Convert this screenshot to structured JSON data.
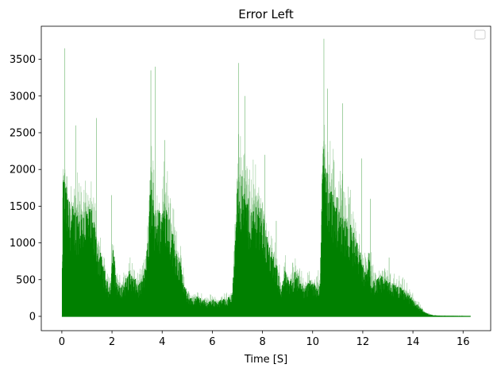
{
  "chart_data": {
    "type": "area",
    "title": "Error Left",
    "xlabel": "Time [S]",
    "ylabel": "",
    "xlim": [
      -0.82,
      17.1
    ],
    "ylim": [
      -195,
      3950
    ],
    "xticks": [
      0,
      2,
      4,
      6,
      8,
      10,
      12,
      14,
      16
    ],
    "yticks": [
      0,
      500,
      1000,
      1500,
      2000,
      2500,
      3000,
      3500
    ],
    "grid": false,
    "legend": {
      "location": "top-right",
      "entries": []
    },
    "series": [
      {
        "color": "#008000",
        "style": "dense vertical lines (signal envelope)",
        "envelope": {
          "x": [
            0.0,
            0.05,
            0.1,
            0.2,
            0.3,
            0.45,
            0.6,
            0.8,
            1.0,
            1.2,
            1.35,
            1.45,
            1.6,
            1.75,
            1.85,
            1.95,
            2.05,
            2.15,
            2.3,
            2.5,
            2.7,
            2.9,
            3.1,
            3.3,
            3.45,
            3.55,
            3.65,
            3.8,
            3.95,
            4.1,
            4.3,
            4.5,
            4.7,
            4.85,
            5.0,
            5.2,
            5.4,
            5.6,
            5.8,
            6.0,
            6.2,
            6.4,
            6.6,
            6.8,
            6.9,
            7.0,
            7.1,
            7.25,
            7.45,
            7.6,
            7.8,
            8.0,
            8.15,
            8.3,
            8.45,
            8.6,
            8.75,
            8.9,
            9.05,
            9.2,
            9.35,
            9.5,
            9.7,
            9.9,
            10.1,
            10.3,
            10.4,
            10.45,
            10.55,
            10.7,
            10.9,
            11.1,
            11.3,
            11.5,
            11.7,
            11.85,
            12.0,
            12.15,
            12.25,
            12.35,
            12.5,
            12.7,
            12.9,
            13.1,
            13.3,
            13.5,
            13.7,
            13.9,
            14.1,
            14.3,
            14.5,
            14.8,
            15.2,
            15.6,
            16.0,
            16.3
          ],
          "y": [
            0,
            2600,
            2400,
            2200,
            2000,
            1900,
            1850,
            1900,
            1950,
            1800,
            1500,
            1200,
            1000,
            700,
            550,
            650,
            1300,
            700,
            500,
            600,
            800,
            650,
            550,
            800,
            1400,
            2600,
            2000,
            1900,
            1800,
            2200,
            1700,
            1300,
            1000,
            600,
            400,
            300,
            350,
            300,
            250,
            300,
            260,
            300,
            320,
            400,
            1200,
            2600,
            2500,
            2300,
            2000,
            1900,
            2100,
            1800,
            1500,
            1200,
            1000,
            850,
            500,
            800,
            600,
            700,
            850,
            600,
            500,
            650,
            550,
            600,
            2700,
            3100,
            2600,
            2300,
            2100,
            1900,
            1800,
            1600,
            1400,
            1200,
            900,
            800,
            1100,
            700,
            600,
            700,
            650,
            600,
            550,
            500,
            450,
            350,
            250,
            150,
            60,
            20,
            12,
            10,
            8,
            5
          ]
        },
        "peaks": {
          "x": [
            0.12,
            0.55,
            1.38,
            1.98,
            3.55,
            3.72,
            4.1,
            7.05,
            7.3,
            8.1,
            8.55,
            10.45,
            10.6,
            11.2,
            11.95,
            12.3,
            13.05
          ],
          "y": [
            3650,
            2600,
            2700,
            1650,
            3350,
            3400,
            2400,
            3450,
            3000,
            2200,
            1300,
            3780,
            3100,
            2900,
            2150,
            1600,
            800
          ]
        }
      }
    ]
  }
}
